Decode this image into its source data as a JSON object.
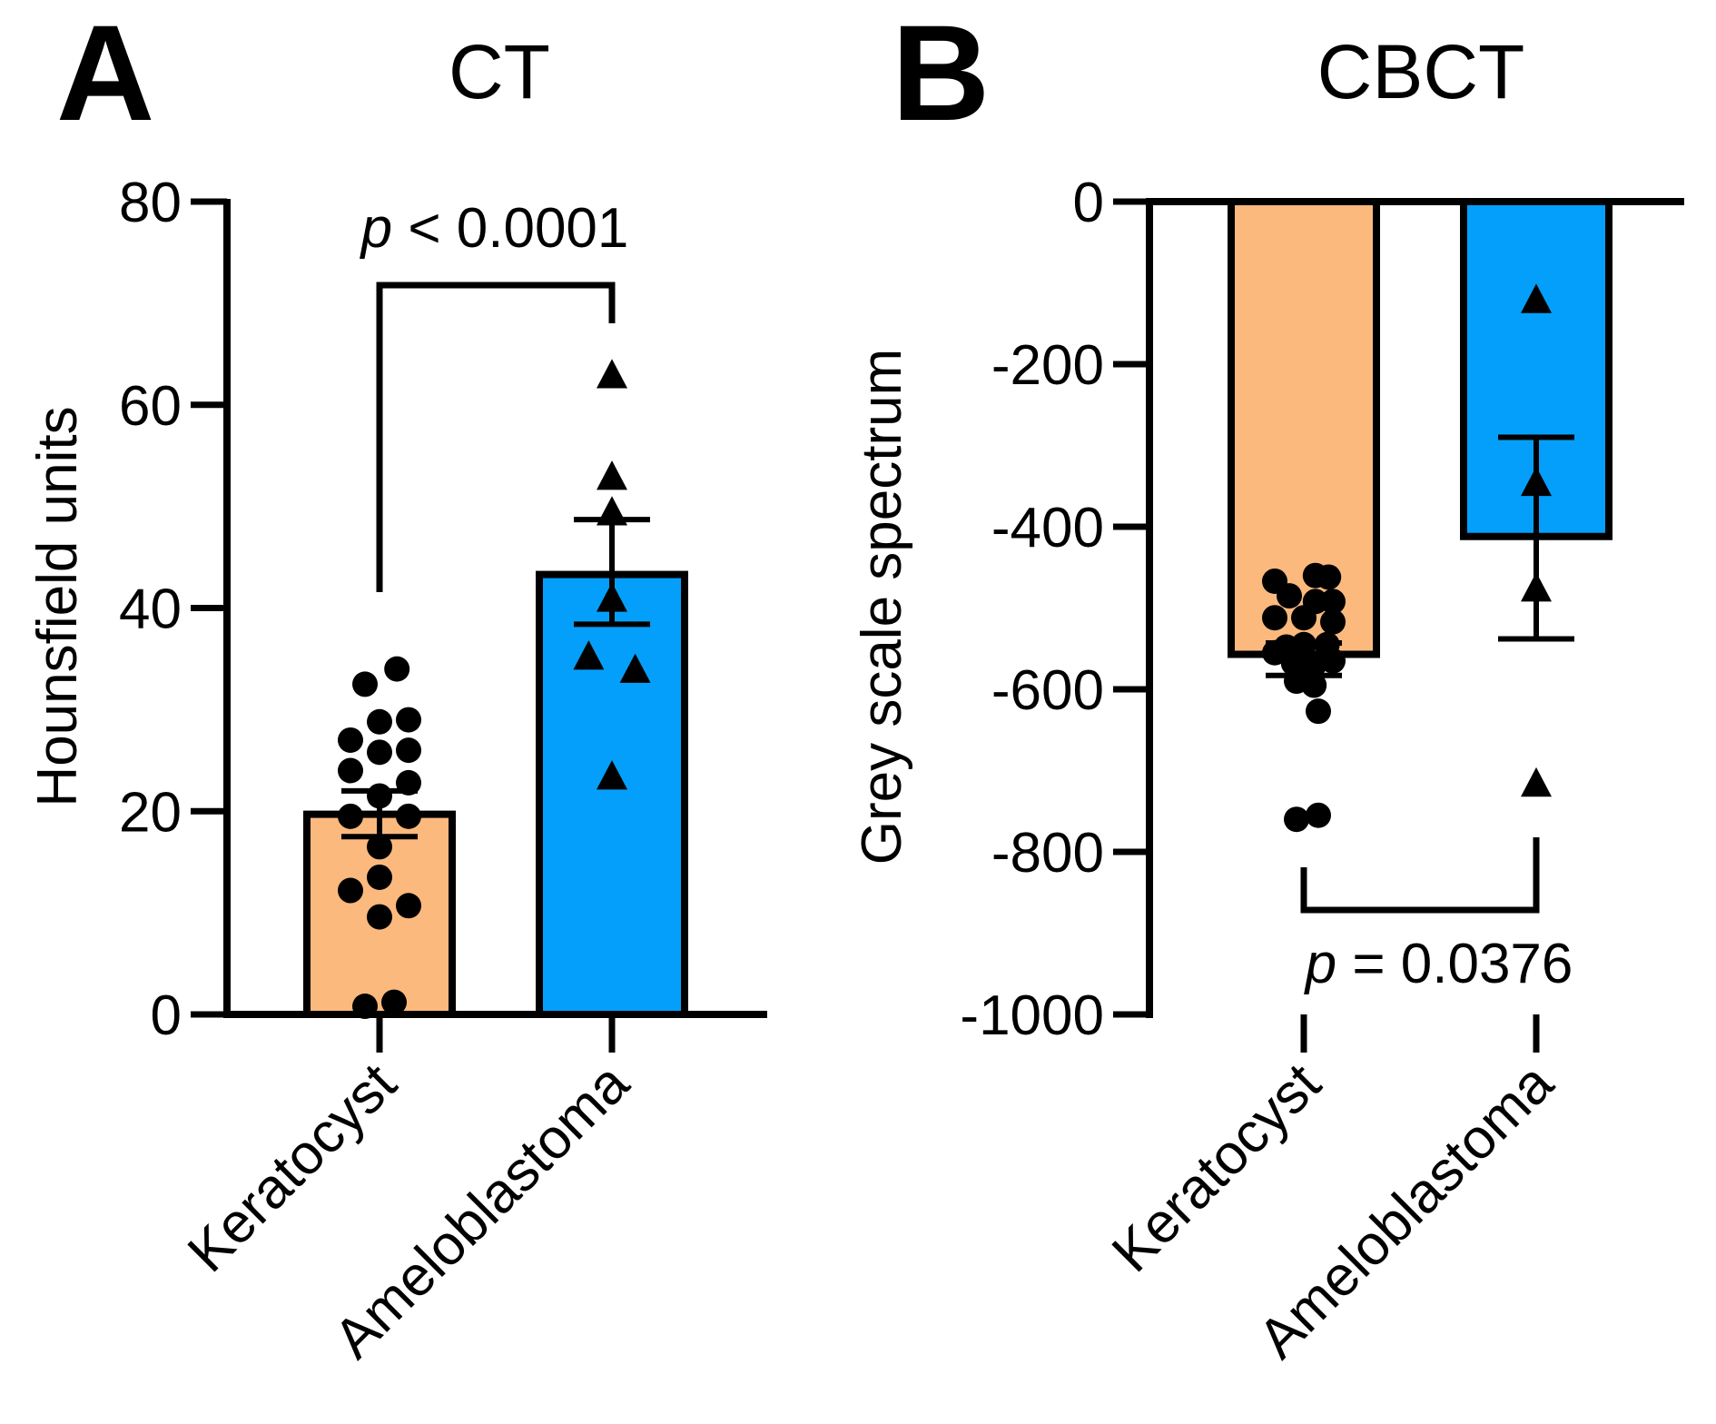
{
  "colors": {
    "keratocyst": "#FBB97E",
    "ameloblastoma": "#049FFA",
    "ink": "#000000"
  },
  "chart_data": [
    {
      "panel_label": "A",
      "title": "CT",
      "type": "bar",
      "ylabel": "Hounsfield units",
      "xlabel": "",
      "ylim": [
        0,
        80
      ],
      "yticks": [
        "0",
        "20",
        "40",
        "60",
        "80"
      ],
      "ytick_values": [
        0,
        20,
        40,
        60,
        80
      ],
      "categories": [
        "Keratocyst",
        "Ameloblastoma"
      ],
      "bars": [
        {
          "name": "Keratocyst",
          "mean": 19.7,
          "sem_low": 17.5,
          "sem_high": 22.0,
          "color": "#FBB97E",
          "marker": "circle"
        },
        {
          "name": "Ameloblastoma",
          "mean": 43.3,
          "sem_low": 38.4,
          "sem_high": 48.7,
          "color": "#049FFA",
          "marker": "triangle"
        }
      ],
      "points": [
        [
          {
            "x": -0.1,
            "y": 32.5
          },
          {
            "x": 0.12,
            "y": 34.0
          },
          {
            "x": -0.2,
            "y": 27.0
          },
          {
            "x": -0.2,
            "y": 24.0
          },
          {
            "x": 0.0,
            "y": 28.8
          },
          {
            "x": 0.0,
            "y": 25.8
          },
          {
            "x": 0.2,
            "y": 29.0
          },
          {
            "x": 0.2,
            "y": 26.0
          },
          {
            "x": 0.2,
            "y": 22.8
          },
          {
            "x": 0.0,
            "y": 21.5
          },
          {
            "x": -0.2,
            "y": 19.5
          },
          {
            "x": 0.2,
            "y": 19.5
          },
          {
            "x": 0.0,
            "y": 16.5
          },
          {
            "x": 0.0,
            "y": 13.5
          },
          {
            "x": -0.2,
            "y": 12.2
          },
          {
            "x": 0.2,
            "y": 10.7
          },
          {
            "x": 0.0,
            "y": 9.6
          },
          {
            "x": -0.1,
            "y": 0.8
          },
          {
            "x": 0.1,
            "y": 1.2
          }
        ],
        [
          {
            "x": 0.0,
            "y": 63.0
          },
          {
            "x": 0.0,
            "y": 53.0
          },
          {
            "x": 0.0,
            "y": 49.5
          },
          {
            "x": 0.0,
            "y": 41.0
          },
          {
            "x": -0.16,
            "y": 35.3
          },
          {
            "x": 0.16,
            "y": 34.0
          },
          {
            "x": 0.0,
            "y": 23.5
          }
        ]
      ],
      "significance": {
        "label_prefix": "p",
        "label_rest": " < 0.0001",
        "position": "above"
      }
    },
    {
      "panel_label": "B",
      "title": "CBCT",
      "type": "bar",
      "ylabel": "Grey scale spectrum",
      "xlabel": "",
      "ylim": [
        -1000,
        0
      ],
      "yticks": [
        "0",
        "-200",
        "-400",
        "-600",
        "-800",
        "-1000"
      ],
      "ytick_values": [
        0,
        -200,
        -400,
        -600,
        -800,
        -1000
      ],
      "categories": [
        "Keratocyst",
        "Ameloblastoma"
      ],
      "bars": [
        {
          "name": "Keratocyst",
          "mean": -557,
          "sem_low": -583,
          "sem_high": -543,
          "color": "#FBB97E",
          "marker": "circle"
        },
        {
          "name": "Ameloblastoma",
          "mean": -412,
          "sem_low": -538,
          "sem_high": -290,
          "color": "#049FFA",
          "marker": "triangle"
        }
      ],
      "points": [
        [
          {
            "x": -0.2,
            "y": -467
          },
          {
            "x": -0.2,
            "y": -512
          },
          {
            "x": -0.2,
            "y": -555
          },
          {
            "x": -0.1,
            "y": -485
          },
          {
            "x": -0.12,
            "y": -548
          },
          {
            "x": 0.08,
            "y": -460
          },
          {
            "x": 0.17,
            "y": -462
          },
          {
            "x": 0.0,
            "y": -512
          },
          {
            "x": 0.08,
            "y": -492
          },
          {
            "x": 0.2,
            "y": -492
          },
          {
            "x": 0.2,
            "y": -517
          },
          {
            "x": 0.0,
            "y": -545
          },
          {
            "x": 0.16,
            "y": -545
          },
          {
            "x": -0.07,
            "y": -568
          },
          {
            "x": 0.07,
            "y": -570
          },
          {
            "x": 0.2,
            "y": -565
          },
          {
            "x": -0.05,
            "y": -590
          },
          {
            "x": 0.07,
            "y": -595
          },
          {
            "x": 0.1,
            "y": -627
          },
          {
            "x": -0.05,
            "y": -760
          },
          {
            "x": 0.1,
            "y": -755
          }
        ],
        [
          {
            "x": 0.0,
            "y": -120
          },
          {
            "x": 0.0,
            "y": -345
          },
          {
            "x": 0.0,
            "y": -475
          },
          {
            "x": 0.0,
            "y": -715
          }
        ]
      ],
      "significance": {
        "label_prefix": "p",
        "label_rest": " = 0.0376",
        "position": "below"
      }
    }
  ]
}
